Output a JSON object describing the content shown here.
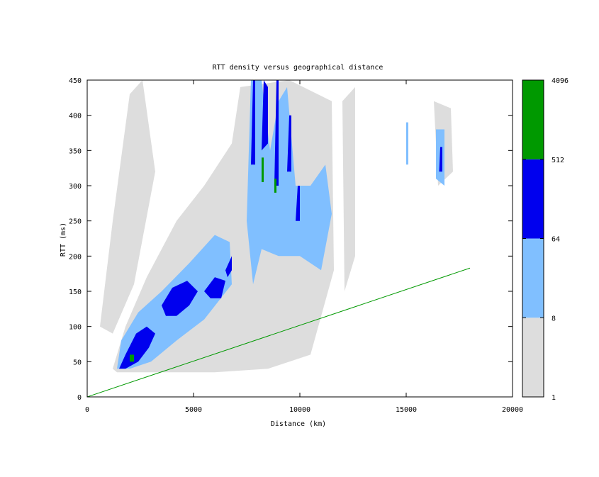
{
  "chart_data": {
    "type": "heatmap",
    "title": "RTT density versus geographical distance",
    "xlabel": "Distance (km)",
    "ylabel": "RTT (ms)",
    "xlim": [
      0,
      20000
    ],
    "ylim": [
      0,
      450
    ],
    "x_ticks": [
      0,
      5000,
      10000,
      15000,
      20000
    ],
    "y_ticks": [
      0,
      50,
      100,
      150,
      200,
      250,
      300,
      350,
      400,
      450
    ],
    "grid": false,
    "colorbar": {
      "scale": "log",
      "tick_labels": [
        "1",
        "8",
        "64",
        "512",
        "4096"
      ],
      "bins": [
        {
          "from": 1,
          "to": 8,
          "color": "#dddddd"
        },
        {
          "from": 8,
          "to": 64,
          "color": "#80bfff"
        },
        {
          "from": 64,
          "to": 512,
          "color": "#0000ee"
        },
        {
          "from": 512,
          "to": 4096,
          "color": "#009900"
        }
      ]
    },
    "reference_line": {
      "color": "#009900",
      "points": [
        [
          0,
          0
        ],
        [
          18000,
          183
        ]
      ]
    },
    "density_regions": [
      {
        "level": 1,
        "polygon": [
          [
            1200,
            40
          ],
          [
            1800,
            100
          ],
          [
            2800,
            170
          ],
          [
            4200,
            250
          ],
          [
            5500,
            300
          ],
          [
            6800,
            360
          ],
          [
            7200,
            440
          ],
          [
            9500,
            450
          ],
          [
            11500,
            420
          ],
          [
            11600,
            180
          ],
          [
            10500,
            60
          ],
          [
            8500,
            40
          ],
          [
            6000,
            35
          ],
          [
            4000,
            35
          ],
          [
            1400,
            35
          ]
        ]
      },
      {
        "level": 1,
        "polygon": [
          [
            600,
            100
          ],
          [
            1200,
            250
          ],
          [
            2000,
            430
          ],
          [
            2600,
            450
          ],
          [
            3200,
            320
          ],
          [
            2200,
            160
          ],
          [
            1200,
            90
          ]
        ]
      },
      {
        "level": 1,
        "polygon": [
          [
            12000,
            420
          ],
          [
            12600,
            440
          ],
          [
            12600,
            200
          ],
          [
            12100,
            150
          ]
        ]
      },
      {
        "level": 1,
        "polygon": [
          [
            16300,
            420
          ],
          [
            17100,
            410
          ],
          [
            17200,
            320
          ],
          [
            16500,
            300
          ]
        ]
      },
      {
        "level": 2,
        "polygon": [
          [
            1400,
            40
          ],
          [
            1600,
            80
          ],
          [
            2400,
            120
          ],
          [
            3500,
            150
          ],
          [
            4800,
            190
          ],
          [
            6000,
            230
          ],
          [
            6700,
            220
          ],
          [
            6800,
            160
          ],
          [
            5500,
            110
          ],
          [
            4200,
            80
          ],
          [
            3000,
            50
          ],
          [
            2000,
            40
          ]
        ]
      },
      {
        "level": 2,
        "polygon": [
          [
            7500,
            250
          ],
          [
            7700,
            450
          ],
          [
            8200,
            450
          ],
          [
            8600,
            350
          ],
          [
            9000,
            420
          ],
          [
            9400,
            440
          ],
          [
            9800,
            300
          ],
          [
            10500,
            300
          ],
          [
            11200,
            330
          ],
          [
            11500,
            260
          ],
          [
            11000,
            180
          ],
          [
            10000,
            200
          ],
          [
            9000,
            200
          ],
          [
            8200,
            210
          ],
          [
            7800,
            160
          ]
        ]
      },
      {
        "level": 2,
        "polygon": [
          [
            16400,
            380
          ],
          [
            16800,
            380
          ],
          [
            16800,
            300
          ],
          [
            16400,
            310
          ]
        ]
      },
      {
        "level": 2,
        "polygon": [
          [
            15000,
            390
          ],
          [
            15100,
            390
          ],
          [
            15100,
            330
          ],
          [
            15000,
            330
          ]
        ]
      },
      {
        "level": 3,
        "polygon": [
          [
            1500,
            40
          ],
          [
            1800,
            60
          ],
          [
            2300,
            90
          ],
          [
            2800,
            100
          ],
          [
            3200,
            90
          ],
          [
            2900,
            70
          ],
          [
            2400,
            50
          ],
          [
            1800,
            40
          ]
        ]
      },
      {
        "level": 3,
        "polygon": [
          [
            3500,
            130
          ],
          [
            4000,
            155
          ],
          [
            4700,
            165
          ],
          [
            5200,
            150
          ],
          [
            4800,
            130
          ],
          [
            4200,
            115
          ],
          [
            3700,
            115
          ]
        ]
      },
      {
        "level": 3,
        "polygon": [
          [
            5500,
            150
          ],
          [
            6000,
            170
          ],
          [
            6500,
            165
          ],
          [
            6300,
            140
          ],
          [
            5800,
            140
          ]
        ]
      },
      {
        "level": 3,
        "polygon": [
          [
            6500,
            180
          ],
          [
            6800,
            200
          ],
          [
            6800,
            180
          ],
          [
            6600,
            170
          ]
        ]
      },
      {
        "level": 3,
        "polygon": [
          [
            7700,
            330
          ],
          [
            7800,
            450
          ],
          [
            7900,
            450
          ],
          [
            7900,
            330
          ]
        ]
      },
      {
        "level": 3,
        "polygon": [
          [
            8200,
            350
          ],
          [
            8300,
            450
          ],
          [
            8500,
            440
          ],
          [
            8500,
            360
          ]
        ]
      },
      {
        "level": 3,
        "polygon": [
          [
            8800,
            300
          ],
          [
            8900,
            450
          ],
          [
            9000,
            450
          ],
          [
            9000,
            300
          ]
        ]
      },
      {
        "level": 3,
        "polygon": [
          [
            9400,
            320
          ],
          [
            9500,
            400
          ],
          [
            9600,
            400
          ],
          [
            9600,
            320
          ]
        ]
      },
      {
        "level": 3,
        "polygon": [
          [
            9800,
            250
          ],
          [
            9900,
            300
          ],
          [
            10000,
            300
          ],
          [
            10000,
            250
          ]
        ]
      },
      {
        "level": 3,
        "polygon": [
          [
            16550,
            320
          ],
          [
            16600,
            355
          ],
          [
            16700,
            355
          ],
          [
            16700,
            320
          ]
        ]
      },
      {
        "level": 4,
        "polygon": [
          [
            2000,
            50
          ],
          [
            2000,
            60
          ],
          [
            2200,
            60
          ],
          [
            2200,
            50
          ]
        ]
      },
      {
        "level": 4,
        "polygon": [
          [
            8200,
            305
          ],
          [
            8200,
            340
          ],
          [
            8300,
            340
          ],
          [
            8300,
            305
          ]
        ]
      },
      {
        "level": 4,
        "polygon": [
          [
            8800,
            290
          ],
          [
            8800,
            310
          ],
          [
            8900,
            310
          ],
          [
            8900,
            290
          ]
        ]
      }
    ]
  }
}
